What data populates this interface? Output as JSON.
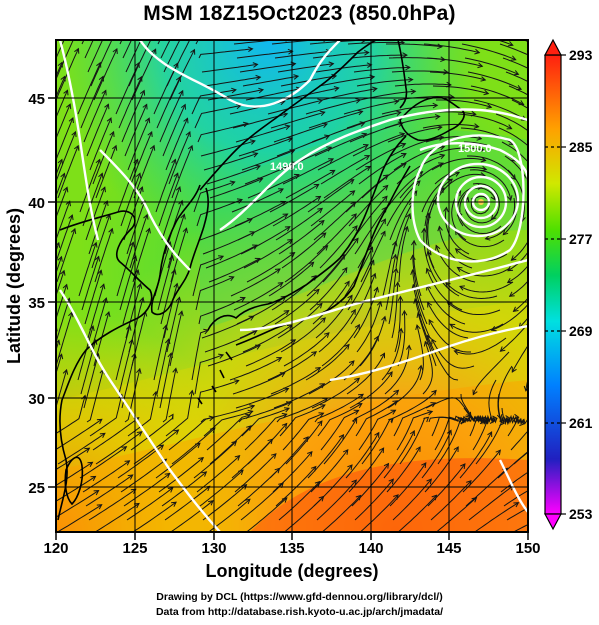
{
  "title": "MSM 18Z15Oct2023 (850.0hPa)",
  "xlabel": "Longitude (degrees)",
  "ylabel": "Latitude  (degrees)",
  "x_ticks": [
    "120",
    "125",
    "130",
    "135",
    "140",
    "145",
    "150"
  ],
  "y_ticks": [
    "25",
    "30",
    "35",
    "40",
    "45"
  ],
  "colorbar_ticks": [
    "293",
    "285",
    "277",
    "269",
    "261",
    "253"
  ],
  "credits": [
    "Drawing by DCL (https://www.gfd-dennou.org/library/dcl/)",
    "Data from http://database.rish.kyoto-u.ac.jp/arch/jmadata/"
  ],
  "contour_labels": [
    "1500.0",
    "1490.0"
  ],
  "map": {
    "lon_range": [
      120,
      150
    ],
    "lat_range": [
      22.5,
      47.5
    ],
    "field": "temperature (K) shaded, streamlines, geopotential height contours",
    "low_center": {
      "lon": 146.8,
      "lat": 40.0
    },
    "colors": {
      "frame": "#000000",
      "coast": "#000000",
      "contour": "#ffffff",
      "streamline": "#111111"
    }
  },
  "colorbar": {
    "min": 253,
    "max": 293,
    "stops": [
      "#ff00ff",
      "#0000cc",
      "#0090ff",
      "#00e0e0",
      "#00d26e",
      "#40e000",
      "#c8e800",
      "#ffc000",
      "#ff6a00",
      "#ff1a10"
    ]
  }
}
